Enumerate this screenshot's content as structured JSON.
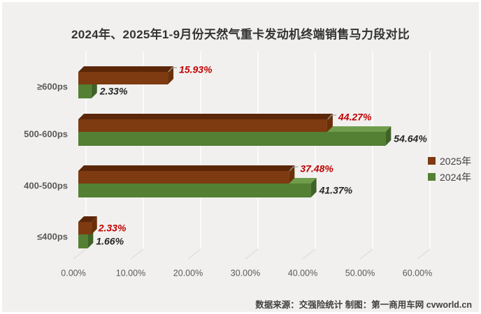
{
  "title": "2024年、2025年1-9月份天然气重卡发动机终端销售马力段对比",
  "source_note": "数据来源：交强险统计  制图：第一商用车网 cvworld.cn",
  "legend": [
    {
      "label": "2025年",
      "color": "#7E3A10"
    },
    {
      "label": "2024年",
      "color": "#538032"
    }
  ],
  "chart_data": {
    "type": "bar",
    "style": "3d-horizontal-bar",
    "title": "2024年、2025年1-9月份天然气重卡发动机终端销售马力段对比",
    "categories": [
      "≥600ps",
      "500-600ps",
      "400-500ps",
      "≤400ps"
    ],
    "series": [
      {
        "name": "2025年",
        "values": [
          15.93,
          44.27,
          37.48,
          2.33
        ],
        "labels": [
          "15.93%",
          "44.27%",
          "37.48%",
          "2.33%"
        ],
        "colors": {
          "front": "#7E3A10",
          "top": "#5B2708",
          "side": "#6B3009"
        },
        "label_color": "#C00000",
        "callouts": [
          true,
          true,
          true,
          false
        ]
      },
      {
        "name": "2024年",
        "values": [
          2.33,
          54.64,
          41.37,
          1.66
        ],
        "labels": [
          "2.33%",
          "54.64%",
          "41.37%",
          "1.66%"
        ],
        "colors": {
          "front": "#538032",
          "top": "#6F9D4C",
          "side": "#3F6326"
        },
        "label_color": "#262626",
        "callouts": [
          false,
          false,
          false,
          false
        ]
      }
    ],
    "xlabel": "",
    "ylabel": "",
    "x_axis": {
      "min": 0,
      "max": 60,
      "tick_step": 10,
      "tick_labels": [
        "0.00%",
        "10.00%",
        "20.00%",
        "30.00%",
        "40.00%",
        "50.00%",
        "60.00%"
      ]
    },
    "grid": true,
    "legend_position": "right"
  },
  "colors": {
    "background": "#F1F0EF",
    "frame": "#FFFFFF",
    "gridline": "#FAFAF9",
    "floor_line": "#DEDDDC",
    "title": "#333333",
    "axis_text": "#595959",
    "footer_text": "#404040",
    "callout_line": "#A0A0A0"
  }
}
